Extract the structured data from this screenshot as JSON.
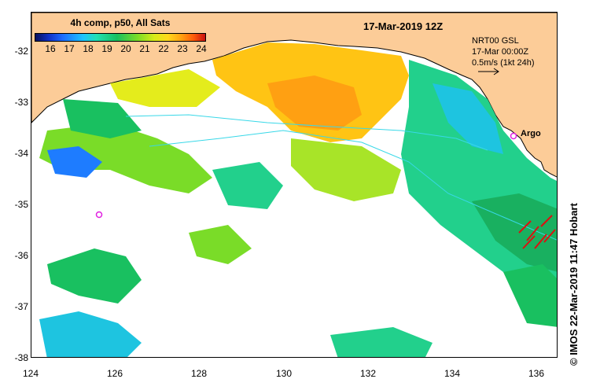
{
  "colorbar": {
    "title": "4h comp, p50, All Sats",
    "ticks": [
      "16",
      "17",
      "18",
      "19",
      "20",
      "21",
      "22",
      "23",
      "24"
    ]
  },
  "header": {
    "date": "17-Mar-2019 12Z"
  },
  "info": {
    "line1": "NRT00 GSL",
    "line2": "17-Mar 00:00Z",
    "line3": "0.5m/s (1kt 24h)"
  },
  "argo": {
    "label": "Argo"
  },
  "side_label": "© IMOS 22-Mar-2019 11:47 Hobart",
  "axes": {
    "y_labels": [
      "-32",
      "-33",
      "-34",
      "-35",
      "-36",
      "-37",
      "-38"
    ],
    "x_labels": [
      "124",
      "126",
      "128",
      "130",
      "132",
      "134",
      "136"
    ]
  },
  "colors": {
    "land": "#fccc98",
    "current_line": "#38d8e8",
    "argo_marker": "#e020e0",
    "argo_label": "#000000"
  }
}
